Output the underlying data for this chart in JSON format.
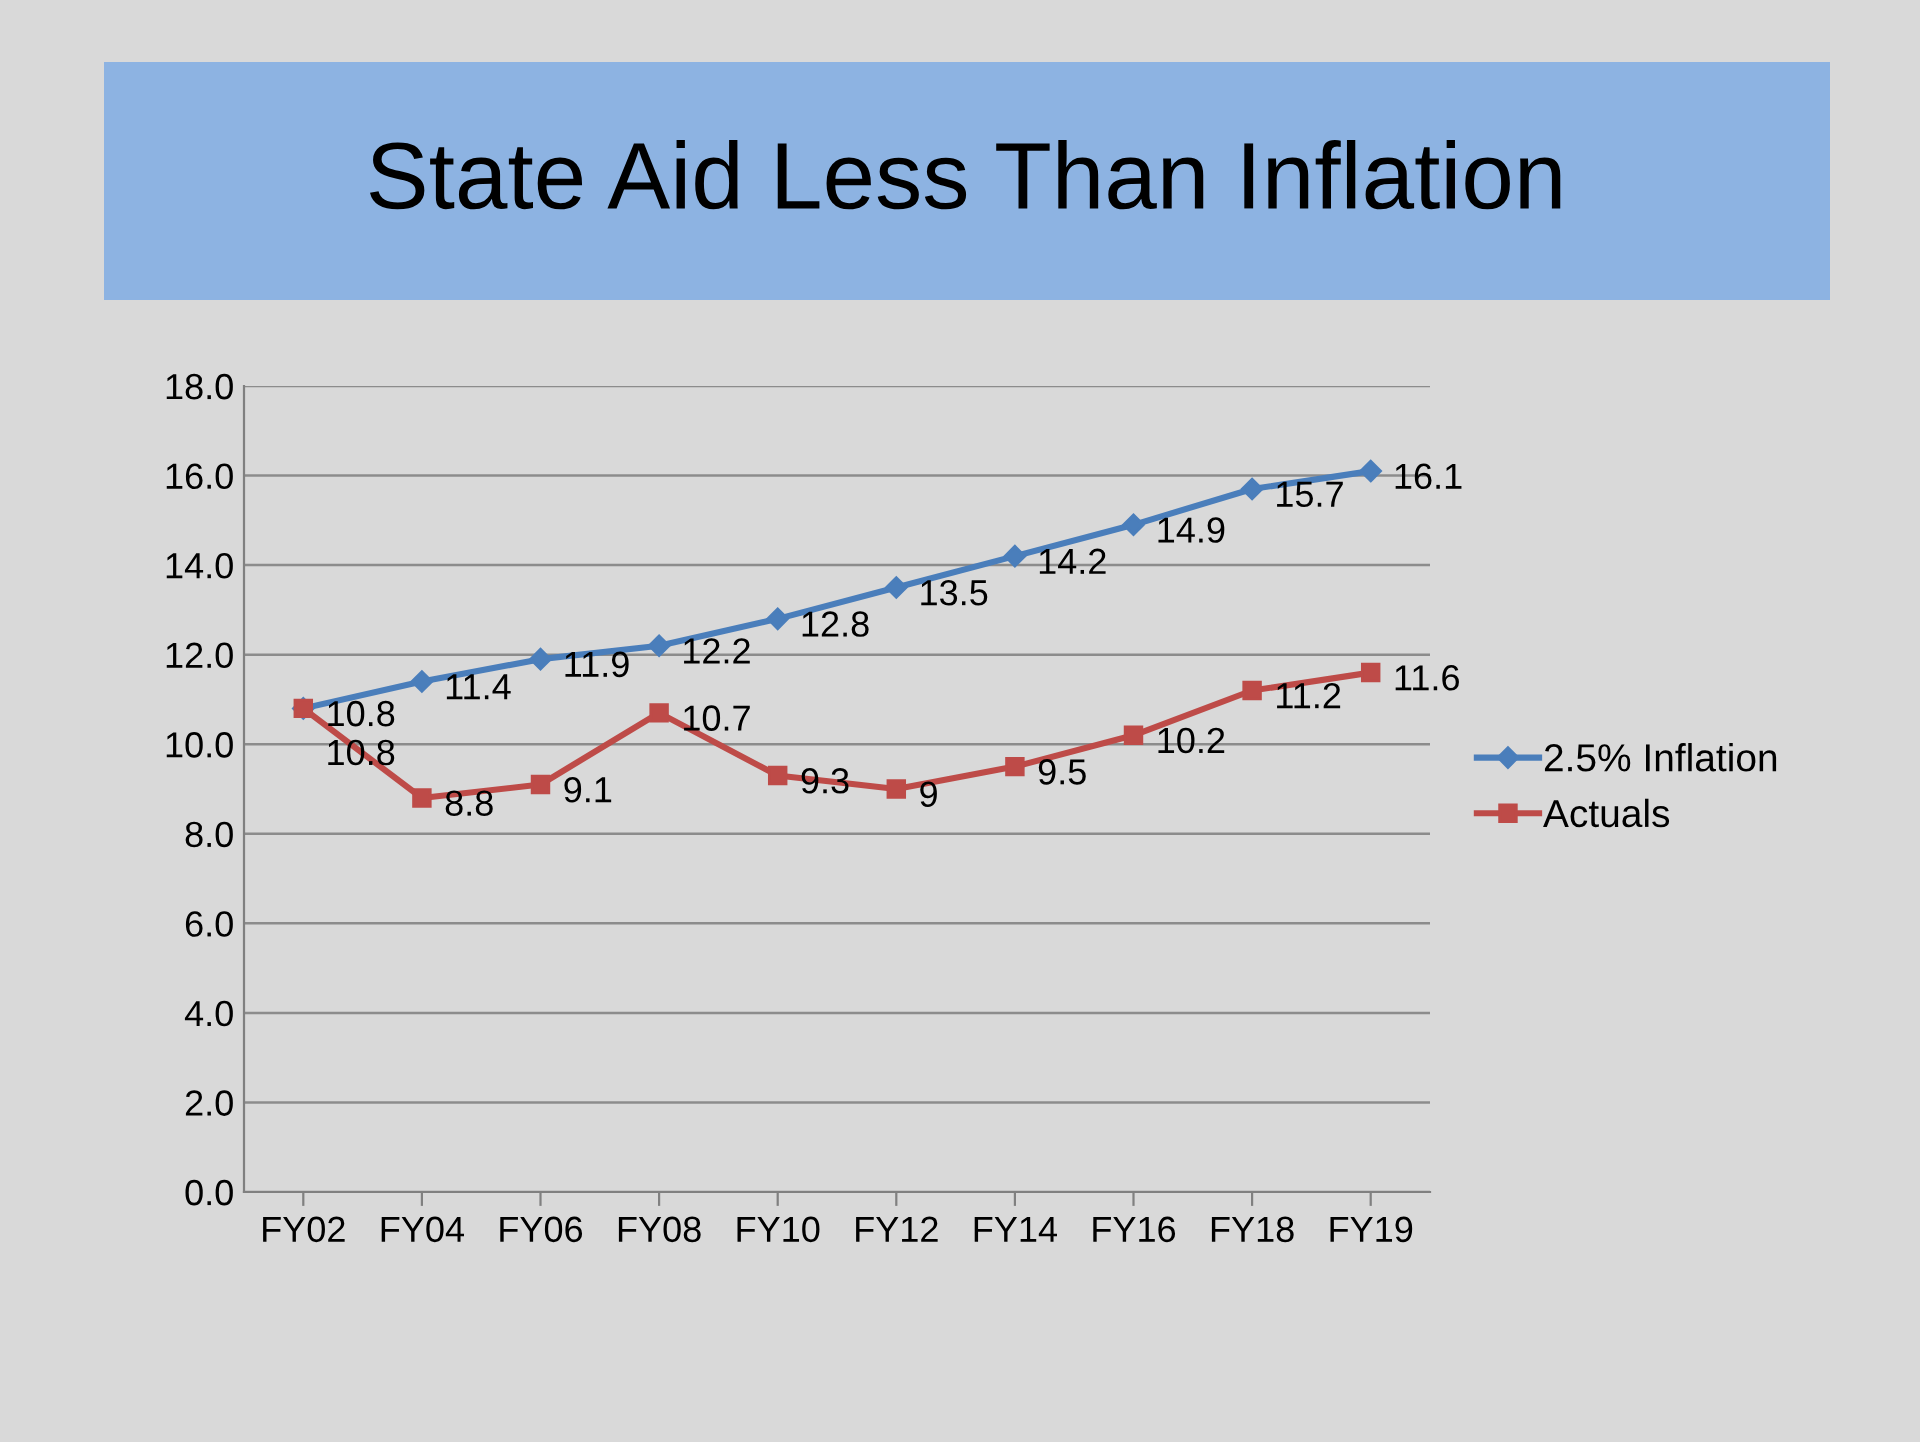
{
  "chart_data": {
    "type": "line",
    "title": "State Aid Less Than Inflation",
    "categories": [
      "FY02",
      "FY04",
      "FY06",
      "FY08",
      "FY10",
      "FY12",
      "FY14",
      "FY16",
      "FY18",
      "FY19"
    ],
    "series": [
      {
        "name": "2.5% Inflation",
        "color": "#4a7ebb",
        "marker": "diamond",
        "values": [
          10.8,
          11.4,
          11.9,
          12.2,
          12.8,
          13.5,
          14.2,
          14.9,
          15.7,
          16.1
        ]
      },
      {
        "name": "Actuals",
        "color": "#be4b48",
        "marker": "square",
        "values": [
          10.8,
          8.8,
          9.1,
          10.7,
          9.3,
          9,
          9.5,
          10.2,
          11.2,
          11.6
        ]
      }
    ],
    "ylim": [
      0,
      18
    ],
    "yticks": [
      {
        "value": 0,
        "label": "0.0"
      },
      {
        "value": 2,
        "label": "2.0"
      },
      {
        "value": 4,
        "label": "4.0"
      },
      {
        "value": 6,
        "label": "6.0"
      },
      {
        "value": 8,
        "label": "8.0"
      },
      {
        "value": 10,
        "label": "10.0"
      },
      {
        "value": 12,
        "label": "12.0"
      },
      {
        "value": 14,
        "label": "14.0"
      },
      {
        "value": 16,
        "label": "16.0"
      },
      {
        "value": 18,
        "label": "18.0"
      }
    ],
    "grid": "y",
    "legend": "right",
    "data_labels": true,
    "line_style": "solid"
  }
}
